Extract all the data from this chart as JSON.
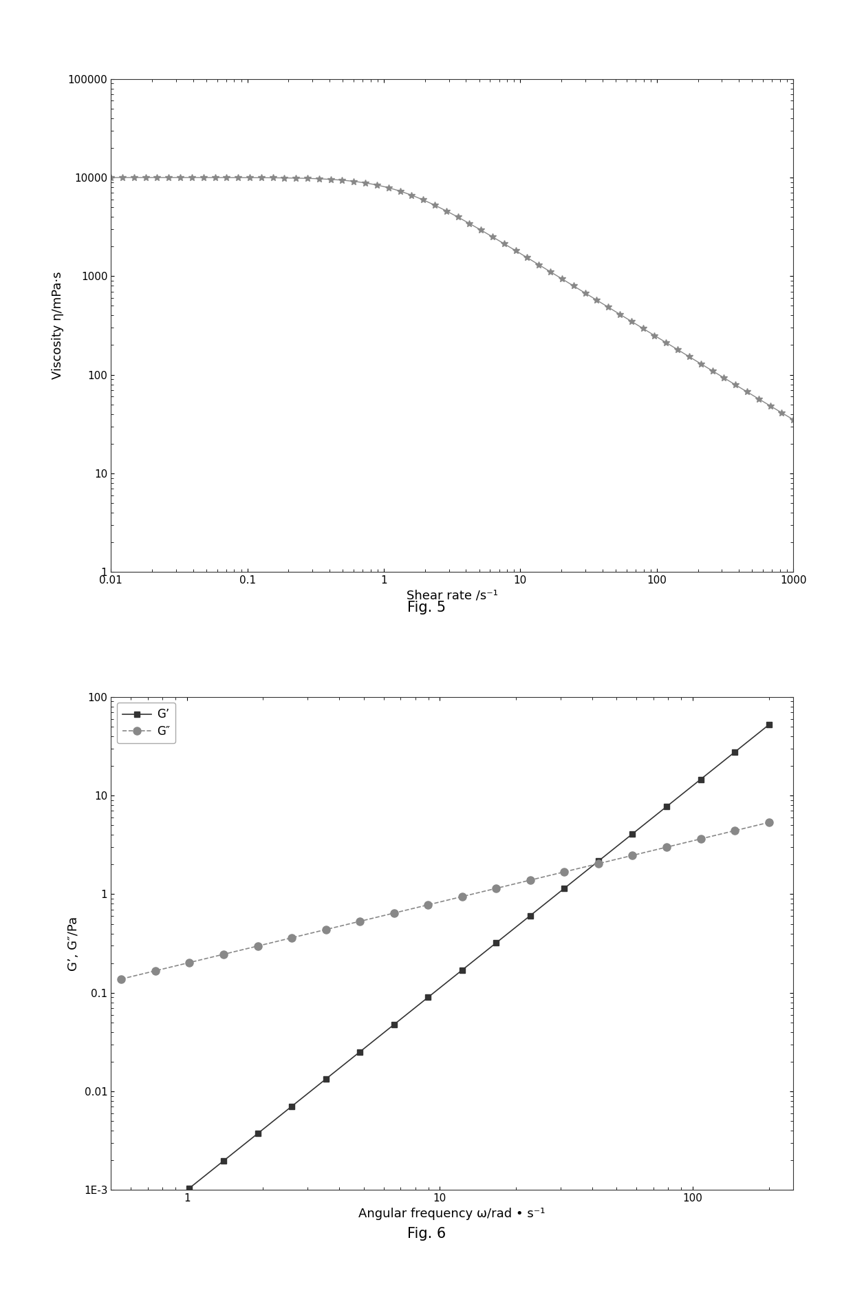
{
  "fig5": {
    "title": "Fig. 5",
    "xlabel": "Shear rate /s⁻¹",
    "ylabel": "Viscosity η/mPa·s",
    "xlim": [
      0.01,
      1000
    ],
    "ylim": [
      1,
      100000
    ],
    "color": "#888888",
    "marker": "*",
    "markersize": 7,
    "linewidth": 1.0
  },
  "fig6": {
    "title": "Fig. 6",
    "xlabel": "Angular frequency ω/rad • s⁻¹",
    "ylabel": "G’, G″/Pa",
    "xlim": [
      0.5,
      250
    ],
    "ylim": [
      0.001,
      100
    ],
    "gp_color": "#333333",
    "gpp_color": "#888888",
    "gp_marker": "s",
    "gpp_marker": "o",
    "gp_markersize": 6,
    "gpp_markersize": 8,
    "linewidth": 1.2,
    "legend_gp": "G’",
    "legend_gpp": "G″"
  },
  "background_color": "#ffffff",
  "plot_bg_color": "#ffffff"
}
